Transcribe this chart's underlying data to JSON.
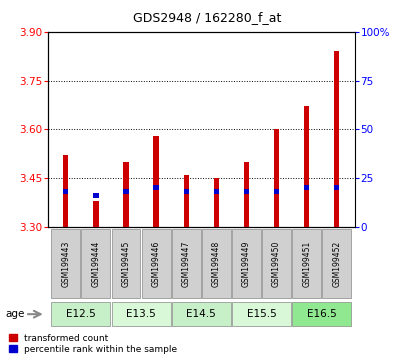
{
  "title": "GDS2948 / 162280_f_at",
  "samples": [
    "GSM199443",
    "GSM199444",
    "GSM199445",
    "GSM199446",
    "GSM199447",
    "GSM199448",
    "GSM199449",
    "GSM199450",
    "GSM199451",
    "GSM199452"
  ],
  "transformed_counts": [
    3.52,
    3.38,
    3.5,
    3.58,
    3.46,
    3.45,
    3.5,
    3.6,
    3.67,
    3.84
  ],
  "percentile_ranks": [
    18,
    16,
    18,
    20,
    18,
    18,
    18,
    18,
    20,
    20
  ],
  "age_groups": [
    {
      "label": "E12.5",
      "samples": [
        0,
        1
      ],
      "color": "#c8f0c8"
    },
    {
      "label": "E13.5",
      "samples": [
        2,
        3
      ],
      "color": "#d8f8d8"
    },
    {
      "label": "E14.5",
      "samples": [
        4,
        5
      ],
      "color": "#c8f0c8"
    },
    {
      "label": "E15.5",
      "samples": [
        6,
        7
      ],
      "color": "#d8f8d8"
    },
    {
      "label": "E16.5",
      "samples": [
        8,
        9
      ],
      "color": "#90e890"
    }
  ],
  "ylim_left": [
    3.3,
    3.9
  ],
  "ylim_right": [
    0,
    100
  ],
  "yticks_left": [
    3.3,
    3.45,
    3.6,
    3.75,
    3.9
  ],
  "yticks_right": [
    0,
    25,
    50,
    75,
    100
  ],
  "bar_color": "#cc0000",
  "percentile_color": "#0000cc",
  "bar_bottom": 3.3,
  "background_color": "#ffffff",
  "sample_box_color": "#d0d0d0",
  "bar_width": 0.18
}
